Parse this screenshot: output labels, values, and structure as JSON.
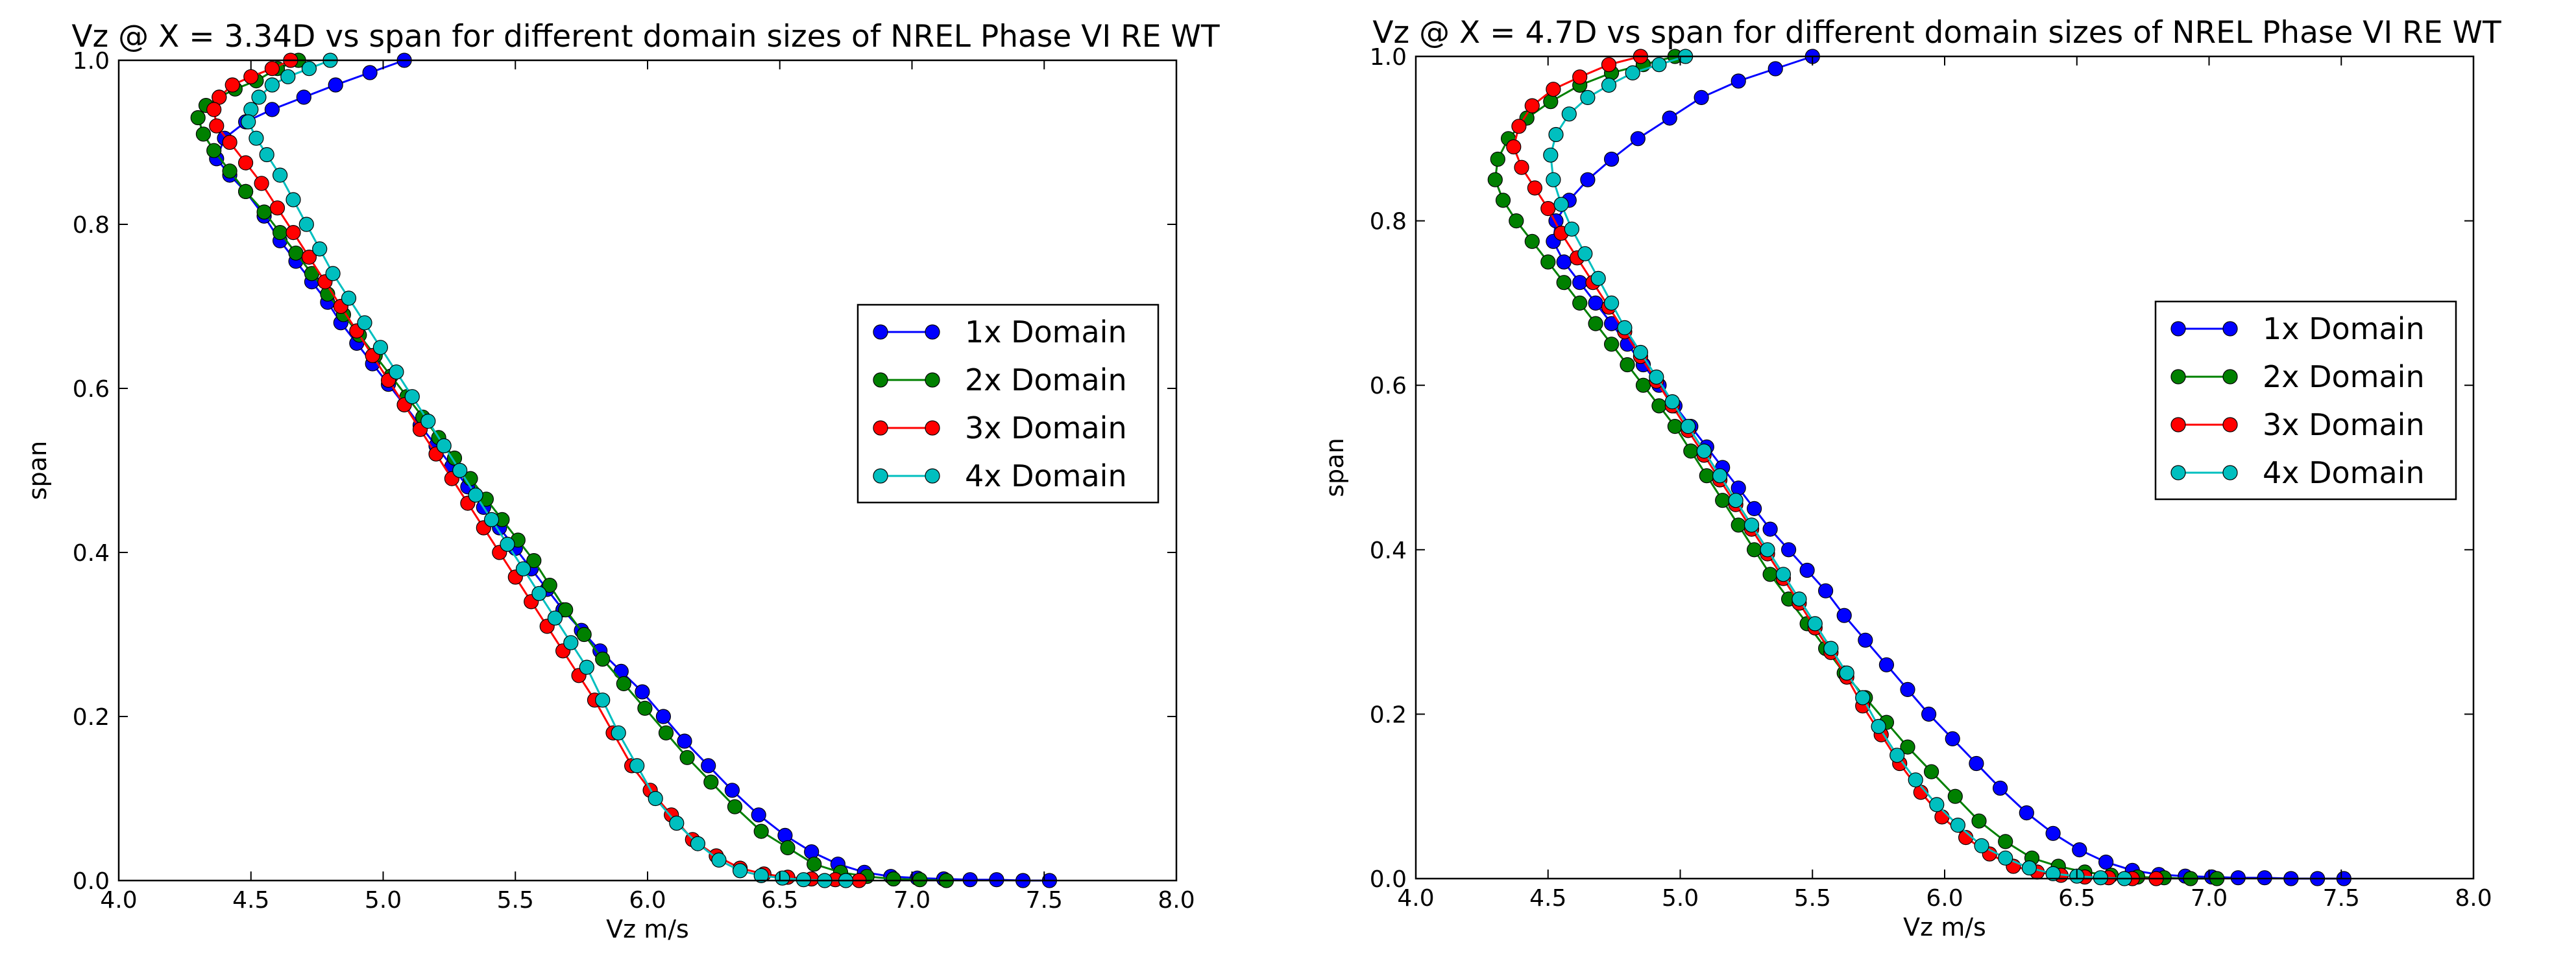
{
  "colors": {
    "1x Domain": "#0000ff",
    "2x Domain": "#008000",
    "3x Domain": "#ff0000",
    "4x Domain": "#00bfbf"
  },
  "chart_data": [
    {
      "type": "line",
      "title": "Vz @ X = 3.34D vs span for different domain sizes of NREL Phase VI RE WT",
      "xlabel": "Vz m/s",
      "ylabel": "span",
      "xlim": [
        4.0,
        8.0
      ],
      "ylim": [
        0.0,
        1.0
      ],
      "xticks": [
        "4.0",
        "4.5",
        "5.0",
        "5.5",
        "6.0",
        "6.5",
        "7.0",
        "7.5",
        "8.0"
      ],
      "yticks": [
        "0.0",
        "0.2",
        "0.4",
        "0.6",
        "0.8",
        "1.0"
      ],
      "legend_position": "center-right",
      "series": [
        {
          "name": "1x Domain",
          "x": [
            5.08,
            4.95,
            4.82,
            4.7,
            4.58,
            4.48,
            4.4,
            4.37,
            4.42,
            4.48,
            4.55,
            4.61,
            4.67,
            4.73,
            4.79,
            4.84,
            4.9,
            4.96,
            5.02,
            5.08,
            5.14,
            5.2,
            5.26,
            5.32,
            5.38,
            5.44,
            5.5,
            5.56,
            5.62,
            5.68,
            5.75,
            5.82,
            5.9,
            5.98,
            6.06,
            6.14,
            6.23,
            6.32,
            6.42,
            6.52,
            6.62,
            6.72,
            6.82,
            6.92,
            7.02,
            7.12,
            7.22,
            7.32,
            7.42,
            7.52
          ],
          "y": [
            1.0,
            0.985,
            0.97,
            0.955,
            0.94,
            0.925,
            0.905,
            0.88,
            0.86,
            0.84,
            0.81,
            0.78,
            0.755,
            0.73,
            0.705,
            0.68,
            0.655,
            0.63,
            0.605,
            0.58,
            0.555,
            0.53,
            0.505,
            0.48,
            0.455,
            0.43,
            0.405,
            0.38,
            0.355,
            0.33,
            0.305,
            0.28,
            0.255,
            0.23,
            0.2,
            0.17,
            0.14,
            0.11,
            0.08,
            0.055,
            0.035,
            0.02,
            0.01,
            0.005,
            0.003,
            0.002,
            0.001,
            0.001,
            0.0,
            0.0
          ]
        },
        {
          "name": "2x Domain",
          "x": [
            4.68,
            4.6,
            4.52,
            4.44,
            4.38,
            4.33,
            4.3,
            4.32,
            4.36,
            4.42,
            4.48,
            4.55,
            4.61,
            4.67,
            4.73,
            4.79,
            4.85,
            4.91,
            4.97,
            5.03,
            5.09,
            5.15,
            5.21,
            5.27,
            5.33,
            5.39,
            5.45,
            5.51,
            5.57,
            5.63,
            5.69,
            5.76,
            5.83,
            5.91,
            5.99,
            6.07,
            6.15,
            6.24,
            6.33,
            6.43,
            6.53,
            6.63,
            6.73,
            6.83,
            6.93,
            7.03,
            7.13
          ],
          "y": [
            1.0,
            0.99,
            0.975,
            0.965,
            0.955,
            0.945,
            0.93,
            0.91,
            0.89,
            0.865,
            0.84,
            0.815,
            0.79,
            0.765,
            0.74,
            0.715,
            0.69,
            0.665,
            0.64,
            0.615,
            0.59,
            0.565,
            0.54,
            0.515,
            0.49,
            0.465,
            0.44,
            0.415,
            0.39,
            0.36,
            0.33,
            0.3,
            0.27,
            0.24,
            0.21,
            0.18,
            0.15,
            0.12,
            0.09,
            0.06,
            0.04,
            0.02,
            0.01,
            0.005,
            0.002,
            0.001,
            0.0
          ]
        },
        {
          "name": "3x Domain",
          "x": [
            4.65,
            4.58,
            4.5,
            4.43,
            4.38,
            4.36,
            4.37,
            4.42,
            4.48,
            4.54,
            4.6,
            4.66,
            4.72,
            4.78,
            4.84,
            4.9,
            4.96,
            5.02,
            5.08,
            5.14,
            5.2,
            5.26,
            5.32,
            5.38,
            5.44,
            5.5,
            5.56,
            5.62,
            5.68,
            5.74,
            5.8,
            5.87,
            5.94,
            6.01,
            6.09,
            6.17,
            6.26,
            6.35,
            6.44,
            6.53,
            6.62,
            6.71,
            6.8
          ],
          "y": [
            1.0,
            0.99,
            0.98,
            0.97,
            0.955,
            0.94,
            0.92,
            0.9,
            0.875,
            0.85,
            0.82,
            0.79,
            0.76,
            0.73,
            0.7,
            0.67,
            0.64,
            0.61,
            0.58,
            0.55,
            0.52,
            0.49,
            0.46,
            0.43,
            0.4,
            0.37,
            0.34,
            0.31,
            0.28,
            0.25,
            0.22,
            0.18,
            0.14,
            0.11,
            0.08,
            0.05,
            0.03,
            0.015,
            0.008,
            0.004,
            0.002,
            0.001,
            0.0
          ]
        },
        {
          "name": "4x Domain",
          "x": [
            4.8,
            4.72,
            4.64,
            4.58,
            4.53,
            4.5,
            4.49,
            4.52,
            4.56,
            4.61,
            4.66,
            4.71,
            4.76,
            4.81,
            4.87,
            4.93,
            4.99,
            5.05,
            5.11,
            5.17,
            5.23,
            5.29,
            5.35,
            5.41,
            5.47,
            5.53,
            5.59,
            5.65,
            5.71,
            5.77,
            5.83,
            5.89,
            5.96,
            6.03,
            6.11,
            6.19,
            6.27,
            6.35,
            6.43,
            6.51,
            6.59,
            6.67,
            6.75
          ],
          "y": [
            1.0,
            0.99,
            0.98,
            0.97,
            0.955,
            0.94,
            0.925,
            0.905,
            0.885,
            0.86,
            0.83,
            0.8,
            0.77,
            0.74,
            0.71,
            0.68,
            0.65,
            0.62,
            0.59,
            0.56,
            0.53,
            0.5,
            0.47,
            0.44,
            0.41,
            0.38,
            0.35,
            0.32,
            0.29,
            0.26,
            0.22,
            0.18,
            0.14,
            0.1,
            0.07,
            0.045,
            0.025,
            0.012,
            0.006,
            0.003,
            0.001,
            0.0,
            0.0
          ]
        }
      ]
    },
    {
      "type": "line",
      "title": "Vz @ X = 4.7D vs span for different domain sizes of NREL Phase VI RE WT",
      "xlabel": "Vz m/s",
      "ylabel": "span",
      "xlim": [
        4.0,
        8.0
      ],
      "ylim": [
        0.0,
        1.0
      ],
      "xticks": [
        "4.0",
        "4.5",
        "5.0",
        "5.5",
        "6.0",
        "6.5",
        "7.0",
        "7.5",
        "8.0"
      ],
      "yticks": [
        "0.0",
        "0.2",
        "0.4",
        "0.6",
        "0.8",
        "1.0"
      ],
      "legend_position": "center-right",
      "series": [
        {
          "name": "1x Domain",
          "x": [
            5.5,
            5.36,
            5.22,
            5.08,
            4.96,
            4.84,
            4.74,
            4.65,
            4.58,
            4.53,
            4.52,
            4.56,
            4.62,
            4.68,
            4.74,
            4.8,
            4.86,
            4.92,
            4.98,
            5.04,
            5.1,
            5.16,
            5.22,
            5.28,
            5.34,
            5.41,
            5.48,
            5.55,
            5.62,
            5.7,
            5.78,
            5.86,
            5.94,
            6.03,
            6.12,
            6.21,
            6.31,
            6.41,
            6.51,
            6.61,
            6.71,
            6.81,
            6.91,
            7.01,
            7.11,
            7.21,
            7.31,
            7.41,
            7.51
          ],
          "y": [
            1.0,
            0.985,
            0.97,
            0.95,
            0.925,
            0.9,
            0.875,
            0.85,
            0.825,
            0.8,
            0.775,
            0.75,
            0.725,
            0.7,
            0.675,
            0.65,
            0.625,
            0.6,
            0.575,
            0.55,
            0.525,
            0.5,
            0.475,
            0.45,
            0.425,
            0.4,
            0.375,
            0.35,
            0.32,
            0.29,
            0.26,
            0.23,
            0.2,
            0.17,
            0.14,
            0.11,
            0.08,
            0.055,
            0.035,
            0.02,
            0.01,
            0.005,
            0.003,
            0.002,
            0.001,
            0.001,
            0.0,
            0.0,
            0.0
          ]
        },
        {
          "name": "2x Domain",
          "x": [
            4.98,
            4.86,
            4.74,
            4.62,
            4.51,
            4.42,
            4.35,
            4.31,
            4.3,
            4.33,
            4.38,
            4.44,
            4.5,
            4.56,
            4.62,
            4.68,
            4.74,
            4.8,
            4.86,
            4.92,
            4.98,
            5.04,
            5.1,
            5.16,
            5.22,
            5.28,
            5.34,
            5.41,
            5.48,
            5.55,
            5.62,
            5.7,
            5.78,
            5.86,
            5.95,
            6.04,
            6.13,
            6.23,
            6.33,
            6.43,
            6.53,
            6.63,
            6.73,
            6.83,
            6.93,
            7.03
          ],
          "y": [
            1.0,
            0.99,
            0.98,
            0.965,
            0.945,
            0.925,
            0.9,
            0.875,
            0.85,
            0.825,
            0.8,
            0.775,
            0.75,
            0.725,
            0.7,
            0.675,
            0.65,
            0.625,
            0.6,
            0.575,
            0.55,
            0.52,
            0.49,
            0.46,
            0.43,
            0.4,
            0.37,
            0.34,
            0.31,
            0.28,
            0.25,
            0.22,
            0.19,
            0.16,
            0.13,
            0.1,
            0.07,
            0.045,
            0.025,
            0.015,
            0.008,
            0.004,
            0.002,
            0.001,
            0.0,
            0.0
          ]
        },
        {
          "name": "3x Domain",
          "x": [
            4.85,
            4.73,
            4.62,
            4.52,
            4.44,
            4.39,
            4.37,
            4.4,
            4.45,
            4.5,
            4.55,
            4.61,
            4.67,
            4.73,
            4.79,
            4.85,
            4.91,
            4.97,
            5.03,
            5.09,
            5.15,
            5.21,
            5.27,
            5.33,
            5.39,
            5.45,
            5.51,
            5.57,
            5.63,
            5.69,
            5.76,
            5.83,
            5.91,
            5.99,
            6.08,
            6.17,
            6.26,
            6.35,
            6.44,
            6.53,
            6.62,
            6.71,
            6.8
          ],
          "y": [
            1.0,
            0.99,
            0.975,
            0.96,
            0.94,
            0.915,
            0.89,
            0.865,
            0.84,
            0.815,
            0.785,
            0.755,
            0.725,
            0.695,
            0.665,
            0.635,
            0.605,
            0.575,
            0.545,
            0.515,
            0.485,
            0.455,
            0.425,
            0.395,
            0.365,
            0.335,
            0.305,
            0.275,
            0.245,
            0.21,
            0.175,
            0.14,
            0.105,
            0.075,
            0.05,
            0.03,
            0.015,
            0.008,
            0.004,
            0.002,
            0.001,
            0.0,
            0.0
          ]
        },
        {
          "name": "4x Domain",
          "x": [
            5.02,
            4.92,
            4.82,
            4.73,
            4.65,
            4.58,
            4.53,
            4.51,
            4.52,
            4.55,
            4.59,
            4.64,
            4.69,
            4.74,
            4.79,
            4.85,
            4.91,
            4.97,
            5.03,
            5.09,
            5.15,
            5.21,
            5.27,
            5.33,
            5.39,
            5.45,
            5.51,
            5.57,
            5.63,
            5.69,
            5.75,
            5.82,
            5.89,
            5.97,
            6.05,
            6.14,
            6.23,
            6.32,
            6.41,
            6.5,
            6.59,
            6.68
          ],
          "y": [
            1.0,
            0.99,
            0.98,
            0.965,
            0.95,
            0.93,
            0.905,
            0.88,
            0.85,
            0.82,
            0.79,
            0.76,
            0.73,
            0.7,
            0.67,
            0.64,
            0.61,
            0.58,
            0.55,
            0.52,
            0.49,
            0.46,
            0.43,
            0.4,
            0.37,
            0.34,
            0.31,
            0.28,
            0.25,
            0.22,
            0.185,
            0.15,
            0.12,
            0.09,
            0.065,
            0.04,
            0.025,
            0.013,
            0.006,
            0.003,
            0.001,
            0.0
          ]
        }
      ]
    }
  ]
}
